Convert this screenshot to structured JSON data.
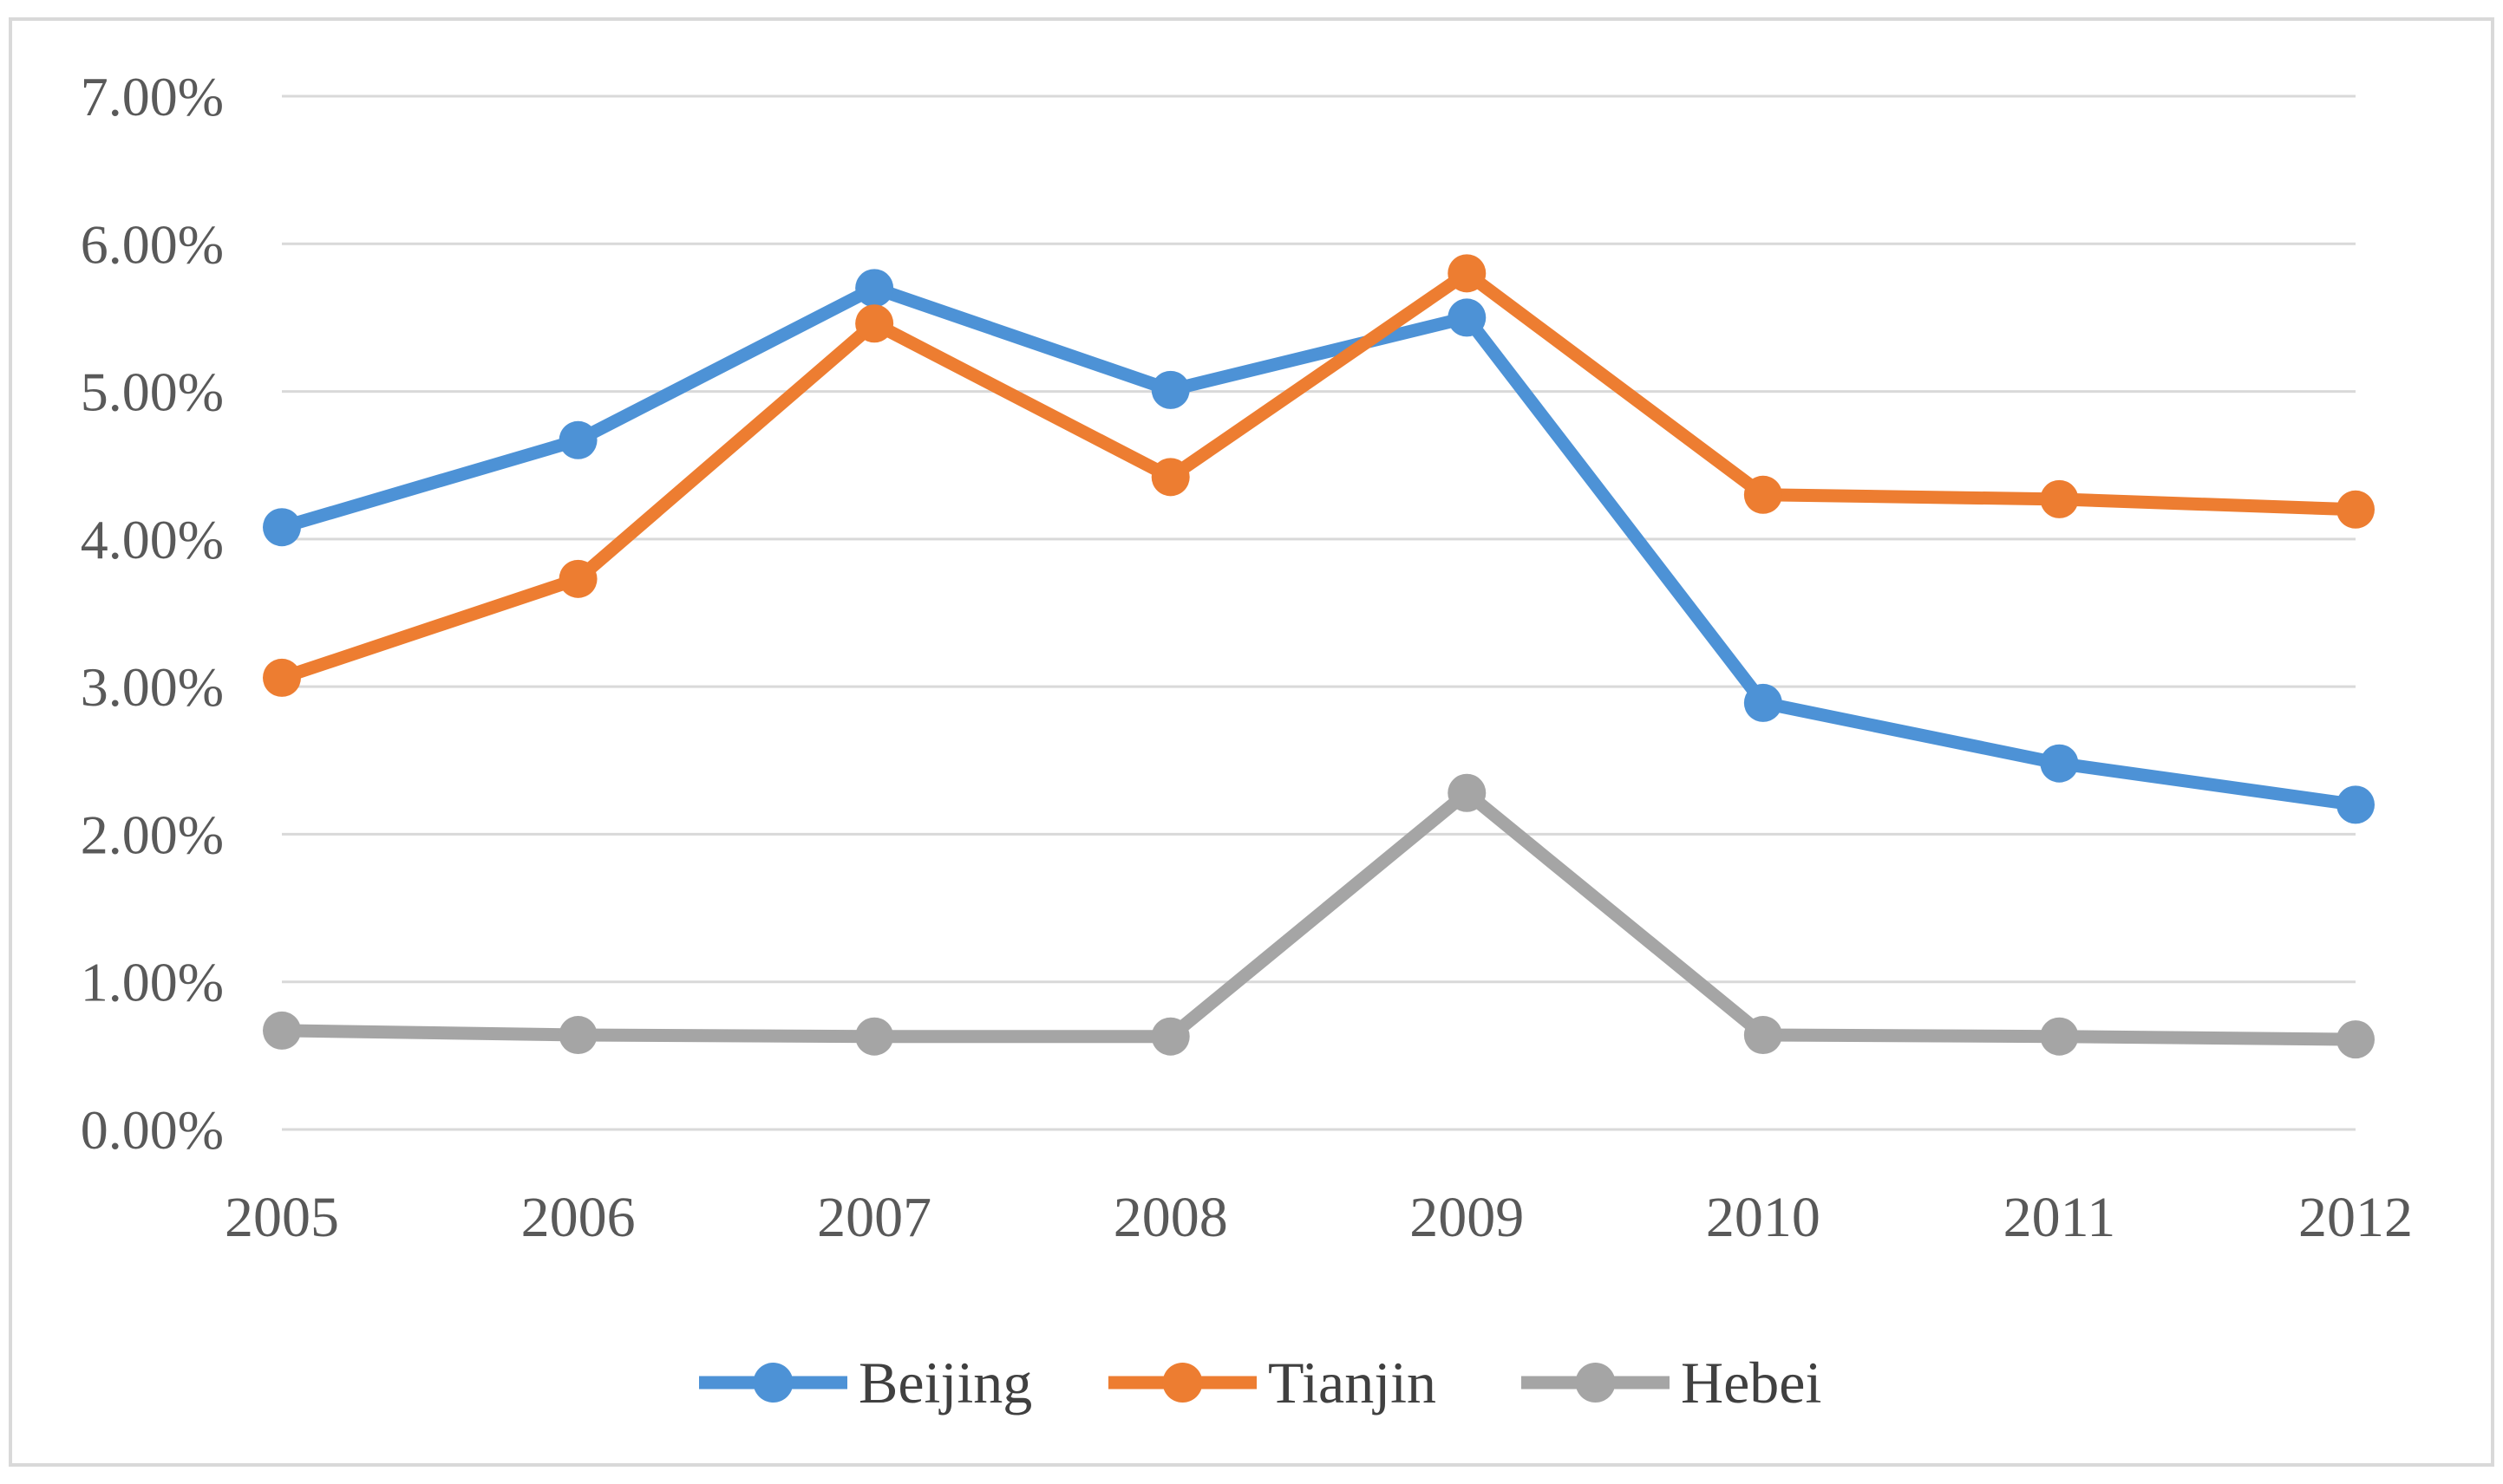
{
  "figure": {
    "background": "#FFFFFF",
    "border_color": "#D9D9D9"
  },
  "chart_data": {
    "type": "line",
    "title": "",
    "xlabel": "",
    "ylabel": "",
    "categories": [
      "2005",
      "2006",
      "2007",
      "2008",
      "2009",
      "2010",
      "2011",
      "2012"
    ],
    "series": [
      {
        "name": "Beijing",
        "color": "#4D92D6",
        "values": [
          4.08,
          4.67,
          5.7,
          5.01,
          5.5,
          2.89,
          2.48,
          2.2
        ]
      },
      {
        "name": "Tianjin",
        "color": "#ED7D31",
        "values": [
          3.06,
          3.73,
          5.46,
          4.42,
          5.8,
          4.3,
          4.27,
          4.2
        ]
      },
      {
        "name": "Hebei",
        "color": "#A5A5A5",
        "values": [
          0.67,
          0.64,
          0.63,
          0.63,
          2.28,
          0.64,
          0.63,
          0.61
        ]
      }
    ],
    "ylim": [
      0,
      7
    ],
    "y_tick_step": 1,
    "y_tick_labels": [
      "0.00%",
      "1.00%",
      "2.00%",
      "3.00%",
      "4.00%",
      "5.00%",
      "6.00%",
      "7.00%"
    ],
    "grid": true,
    "gridline_color": "#D9D9D9",
    "tick_label_color": "#595959",
    "legend_text_color": "#404040",
    "legend_position": "bottom",
    "legend_labels": [
      "Beijing",
      "Tianjin",
      "Hebei"
    ],
    "marker": "circle"
  }
}
